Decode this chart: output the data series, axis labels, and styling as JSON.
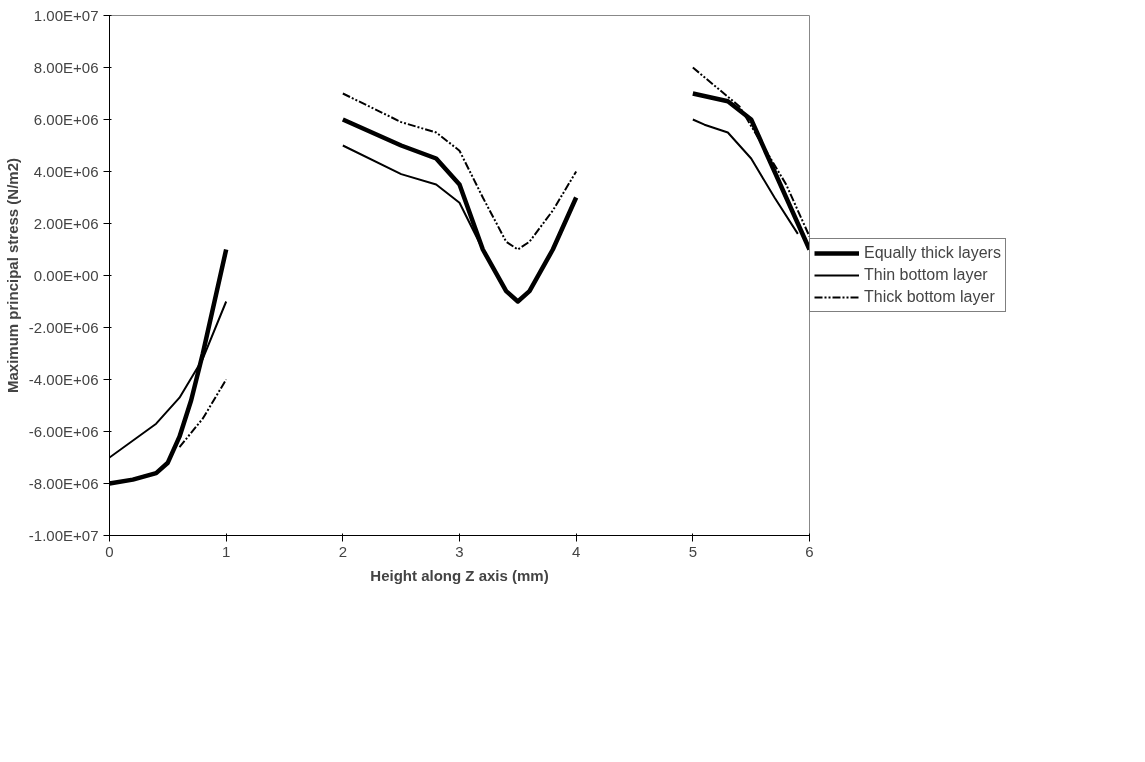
{
  "chart_data": {
    "type": "line",
    "xlabel": "Height along Z axis (mm)",
    "ylabel": "Maximum principal stress (N/m2)",
    "xlim": [
      0,
      6
    ],
    "xticks": [
      0,
      1,
      2,
      3,
      4,
      5,
      6
    ],
    "ylim": [
      -10000000,
      10000000
    ],
    "yticks": [
      {
        "value": -10000000,
        "label": "-1.00E+07"
      },
      {
        "value": -8000000,
        "label": "-8.00E+06"
      },
      {
        "value": -6000000,
        "label": "-6.00E+06"
      },
      {
        "value": -4000000,
        "label": "-4.00E+06"
      },
      {
        "value": -2000000,
        "label": "-2.00E+06"
      },
      {
        "value": 0,
        "label": "0.00E+00"
      },
      {
        "value": 2000000,
        "label": "2.00E+06"
      },
      {
        "value": 4000000,
        "label": "4.00E+06"
      },
      {
        "value": 6000000,
        "label": "6.00E+06"
      },
      {
        "value": 8000000,
        "label": "8.00E+06"
      },
      {
        "value": 10000000,
        "label": "1.00E+07"
      }
    ],
    "grid": false,
    "legend": "right",
    "marker": "none",
    "series": [
      {
        "name": "Equally thick layers",
        "color": "#000000",
        "line_style": "solid",
        "x": [
          0,
          0.2,
          0.4,
          0.5,
          0.6,
          0.7,
          0.8,
          0.9,
          1,
          1.5,
          2,
          2.5,
          2.8,
          3,
          3.2,
          3.4,
          3.5,
          3.6,
          3.8,
          4,
          4.5,
          5,
          5.3,
          5.5,
          5.7,
          5.9,
          6
        ],
        "values": [
          -8000000,
          -7850000,
          -7600000,
          -7200000,
          -6200000,
          -4800000,
          -3000000,
          -1000000,
          1000000,
          null,
          6000000,
          5000000,
          4500000,
          3500000,
          1000000,
          -600000,
          -1000000,
          -600000,
          1000000,
          3000000,
          null,
          7000000,
          6700000,
          6000000,
          4000000,
          2000000,
          1000000
        ]
      },
      {
        "name": "Thin bottom layer",
        "color": "#000000",
        "line_style": "solid",
        "x": [
          0,
          0.4,
          0.6,
          0.8,
          1,
          1.5,
          2,
          2.5,
          2.8,
          3,
          3.2,
          3.5,
          4,
          4.5,
          5,
          5.1,
          5.3,
          5.5,
          5.7,
          5.9
        ],
        "values": [
          -7000000,
          -5700000,
          -4700000,
          -3200000,
          -1000000,
          null,
          5000000,
          3900000,
          3500000,
          2800000,
          1000000,
          null,
          null,
          null,
          6000000,
          5800000,
          5500000,
          4500000,
          3000000,
          1600000
        ]
      },
      {
        "name": "Thick bottom layer",
        "color": "#000000",
        "line_style": "dashdot",
        "x": [
          0.6,
          0.8,
          1,
          1.5,
          2,
          2.5,
          2.8,
          3,
          3.2,
          3.4,
          3.5,
          3.6,
          3.8,
          4,
          4.5,
          5,
          5.4,
          5.6,
          5.8,
          6
        ],
        "values": [
          -6600000,
          -5500000,
          -4000000,
          null,
          7000000,
          5900000,
          5500000,
          4800000,
          3000000,
          1300000,
          1000000,
          1300000,
          2500000,
          4000000,
          null,
          8000000,
          6500000,
          5000000,
          3500000,
          1500000
        ]
      }
    ]
  }
}
